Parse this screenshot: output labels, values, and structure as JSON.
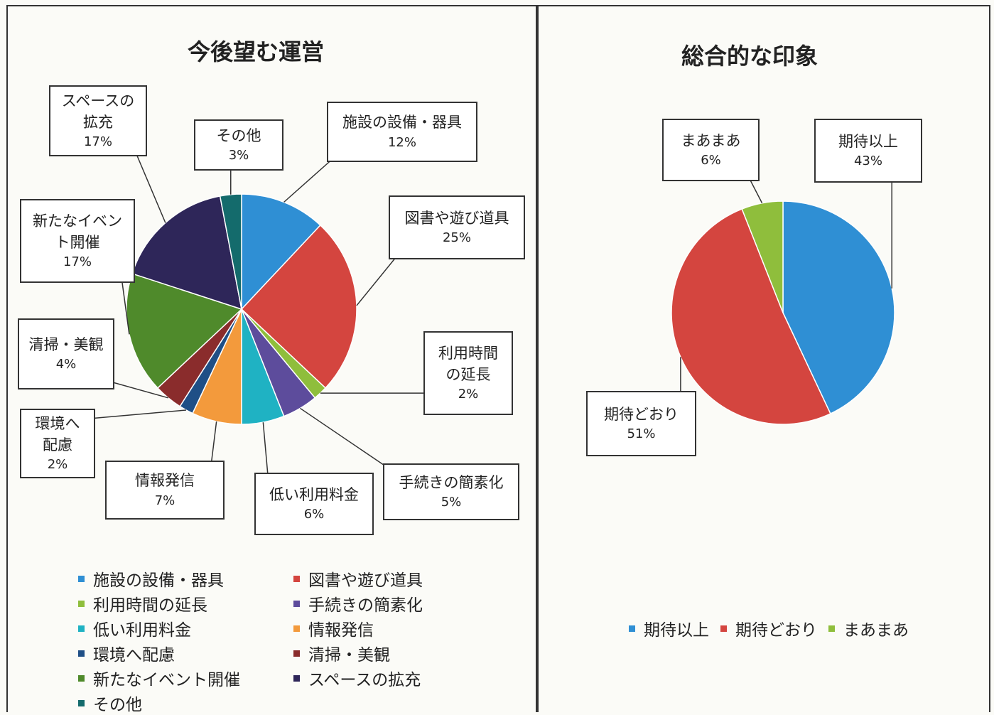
{
  "chart_data": [
    {
      "type": "pie",
      "title": "今後望む運営",
      "categories": [
        "施設の設備・器具",
        "図書や遊び道具",
        "利用時間の延長",
        "手続きの簡素化",
        "低い利用料金",
        "情報発信",
        "環境へ配慮",
        "清掃・美観",
        "新たなイベント開催",
        "スペースの拡充",
        "その他"
      ],
      "values": [
        12,
        25,
        2,
        5,
        6,
        7,
        2,
        4,
        17,
        17,
        3
      ],
      "value_labels": [
        "12%",
        "25%",
        "2%",
        "5%",
        "6%",
        "7%",
        "2%",
        "4%",
        "17%",
        "17%",
        "3%"
      ],
      "colors": [
        "#2f8fd4",
        "#d4453f",
        "#8fbe3c",
        "#5d4c9c",
        "#1fb2c3",
        "#f39a3c",
        "#1f4f86",
        "#8a2c2c",
        "#4f8a2b",
        "#2e2659",
        "#146b6c"
      ]
    },
    {
      "type": "pie",
      "title": "総合的な印象",
      "categories": [
        "期待以上",
        "期待どおり",
        "まあまあ"
      ],
      "values": [
        43,
        51,
        6
      ],
      "value_labels": [
        "43%",
        "51%",
        "6%"
      ],
      "colors": [
        "#2f8fd4",
        "#d4453f",
        "#8fbe3c"
      ]
    }
  ]
}
